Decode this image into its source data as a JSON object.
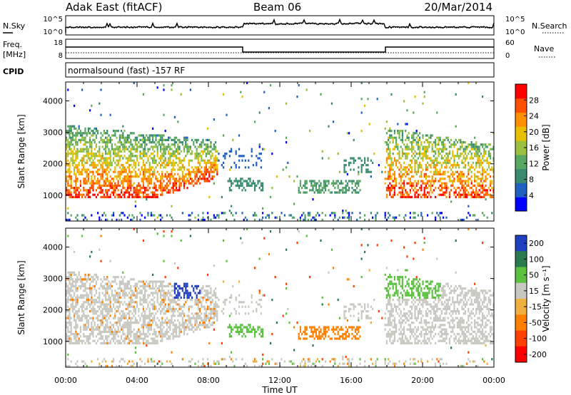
{
  "header": {
    "station": "Adak East (fitACF)",
    "beam": "Beam 06",
    "date": "20/Mar/2014"
  },
  "labels": {
    "nsky": "N.Sky",
    "nsearch": "N.Search",
    "freq_line1": "Freq.",
    "freq_line2": "[MHz]",
    "nave": "Nave",
    "cpid": "CPID",
    "cpid_value": "normalsound (fast) -157 RF"
  },
  "noise_axis": {
    "left_ticks": [
      "10^5",
      "10^0"
    ],
    "right_ticks": [
      "10^5",
      "10^0"
    ]
  },
  "freq_axis": {
    "left_ticks": [
      "18",
      "8"
    ],
    "right_ticks": [
      "60",
      "0"
    ]
  },
  "x_axis": {
    "label": "Time UT",
    "ticks": [
      "00:00",
      "04:00",
      "08:00",
      "12:00",
      "16:00",
      "20:00",
      "00:00"
    ]
  },
  "chart_data": [
    {
      "type": "heatmap",
      "name": "power",
      "ylabel": "Slant Range [km]",
      "yticks": [
        1000,
        2000,
        3000,
        4000
      ],
      "ylim": [
        180,
        4600
      ],
      "xlim_hours": [
        0,
        24
      ],
      "colorbar_label": "Power [dB]",
      "colorbar_ticks": [
        4,
        8,
        12,
        16,
        20,
        24,
        28
      ],
      "colorbar_range": [
        0,
        32
      ],
      "colors": [
        "#0000ff",
        "#2060c0",
        "#3a8a70",
        "#58a860",
        "#9ac040",
        "#e8c000",
        "#ff9000",
        "#ff5000",
        "#ff0000"
      ]
    },
    {
      "type": "heatmap",
      "name": "velocity",
      "ylabel": "Slant Range [km]",
      "yticks": [
        1000,
        2000,
        3000,
        4000
      ],
      "ylim": [
        180,
        4600
      ],
      "xlim_hours": [
        0,
        24
      ],
      "colorbar_label": "Velocity [m s⁻¹]",
      "colorbar_ticks": [
        200,
        100,
        50,
        15,
        -15,
        -50,
        -100,
        -200
      ],
      "colors": [
        "#2040c0",
        "#2a7a50",
        "#5cc040",
        "#c8c8c0",
        "#f0b040",
        "#ff8000",
        "#ff4000",
        "#ff0000"
      ]
    }
  ]
}
